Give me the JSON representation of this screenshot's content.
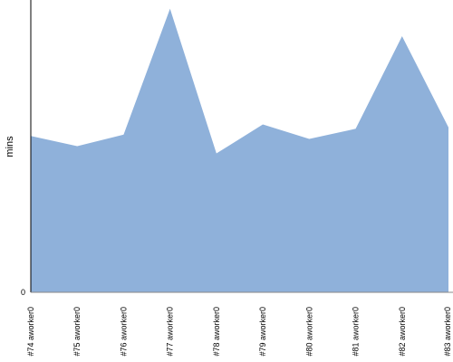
{
  "chart_data": {
    "type": "area",
    "ylabel": "mins",
    "xlabel": "",
    "title": "",
    "categories": [
      "#74 aworker0",
      "#75 aworker0",
      "#76 aworker0",
      "#77 aworker0",
      "#78 aworker0",
      "#79 aworker0",
      "#80 aworker0",
      "#81 aworker0",
      "#82 aworker0",
      "#83 aworker0"
    ],
    "values": [
      5.4,
      5.05,
      5.45,
      9.8,
      4.8,
      5.8,
      5.3,
      5.65,
      8.85,
      5.7
    ],
    "y_ticks": [
      0
    ],
    "ylim": [
      0,
      10.1
    ],
    "grid": false,
    "colors": {
      "fill": "#8fb1da",
      "axis": "#000000"
    }
  }
}
